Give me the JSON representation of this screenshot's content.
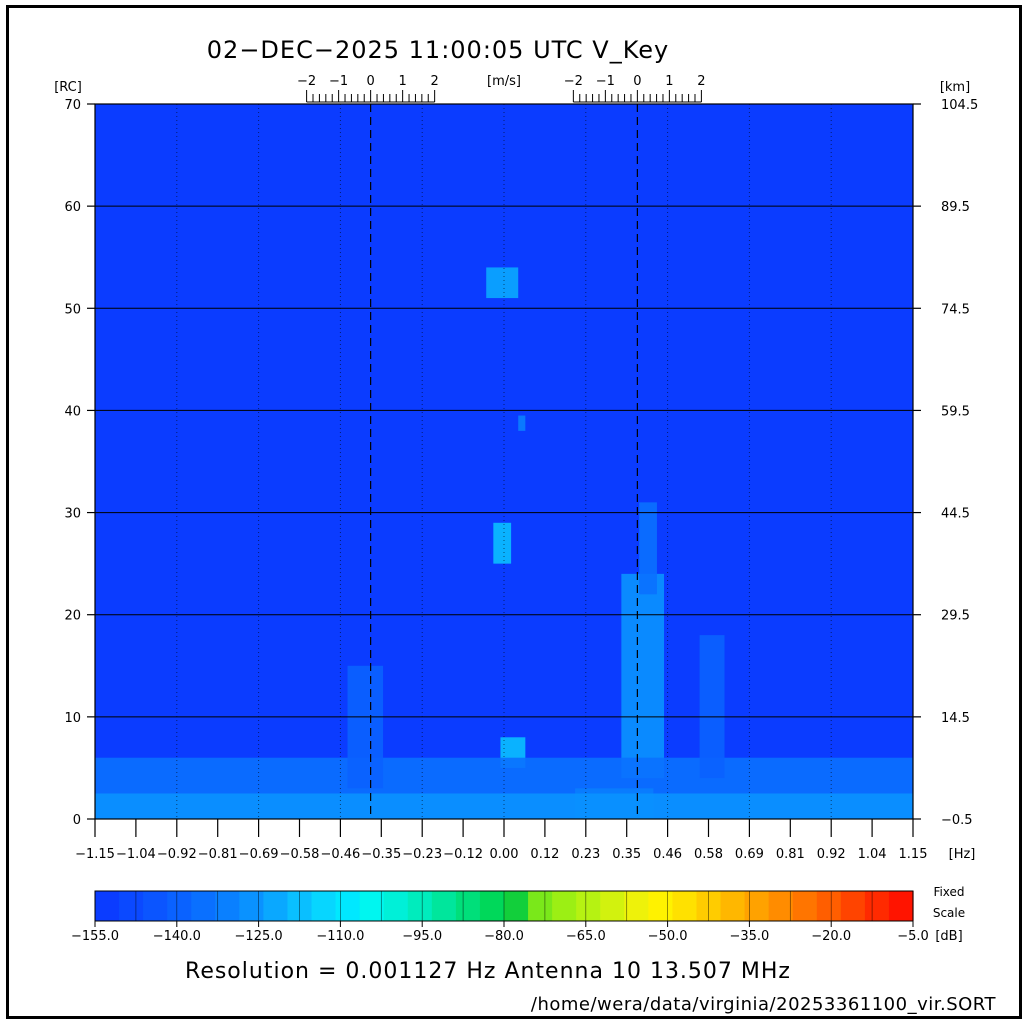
{
  "header": {
    "title": "02−DEC−2025 11:00:05 UTC   V_Key"
  },
  "units": {
    "left": "[RC]",
    "right": "[km]",
    "top": "[m/s]",
    "bottom": "[Hz]",
    "colorbar": "[dB]"
  },
  "colorbar": {
    "label_line1": "Fixed",
    "label_line2": "Scale",
    "ticks": [
      "−155.0",
      "−140.0",
      "−125.0",
      "−110.0",
      "−95.0",
      "−80.0",
      "−65.0",
      "−50.0",
      "−35.0",
      "−20.0",
      "−5.0"
    ],
    "colors": [
      "#0b3cff",
      "#0b49ff",
      "#0b55ff",
      "#0a62ff",
      "#0a70ff",
      "#0a80ff",
      "#0a92ff",
      "#0aa8ff",
      "#0abfff",
      "#07d6ff",
      "#00e8ff",
      "#00f6f0",
      "#00f0d8",
      "#00ecbd",
      "#00e69c",
      "#00df7a",
      "#00d85a",
      "#12cf3b",
      "#7ae81a",
      "#9cef14",
      "#b6f212",
      "#d2f20e",
      "#eef20a",
      "#fff200",
      "#ffe100",
      "#ffcc00",
      "#ffb700",
      "#ffa200",
      "#ff8c00",
      "#ff7500",
      "#ff5e00",
      "#ff4400",
      "#ff2a00",
      "#ff1400"
    ]
  },
  "footer": {
    "resolution": "Resolution = 0.001127 Hz   Antenna 10   13.507 MHz",
    "path": "/home/wera/data/virginia/20253361100_vir.SORT"
  },
  "colors": {
    "background_field": "#0b3cff",
    "low_noise": "#0a6dff",
    "bragg_peak": "#19e6f0",
    "grid": "#000000"
  },
  "chart_data": {
    "type": "heatmap",
    "title": "02−DEC−2025 11:00:05 UTC   V_Key",
    "xlabel": "[Hz]",
    "ylabel_left": "[RC]",
    "ylabel_right": "[km]",
    "x2label": "[m/s]",
    "xlim": [
      -1.15,
      1.15
    ],
    "ylim": [
      0,
      70
    ],
    "x_ticks": [
      "−1.15",
      "−1.04",
      "−0.92",
      "−0.81",
      "−0.69",
      "−0.58",
      "−0.46",
      "−0.35",
      "−0.23",
      "−0.12",
      "0.00",
      "0.12",
      "0.23",
      "0.35",
      "0.46",
      "0.58",
      "0.69",
      "0.81",
      "0.92",
      "1.04",
      "1.15"
    ],
    "x_tick_values": [
      -1.15,
      -1.035,
      -0.92,
      -0.805,
      -0.69,
      -0.575,
      -0.46,
      -0.345,
      -0.23,
      -0.115,
      0,
      0.115,
      0.23,
      0.345,
      0.46,
      0.575,
      0.69,
      0.805,
      0.92,
      1.035,
      1.15
    ],
    "y_ticks_left": [
      "0",
      "10",
      "20",
      "30",
      "40",
      "50",
      "60",
      "70"
    ],
    "y_tick_values": [
      0,
      10,
      20,
      30,
      40,
      50,
      60,
      70
    ],
    "y_ticks_right": [
      "−0.5",
      "14.5",
      "29.5",
      "44.5",
      "59.5",
      "74.5",
      "89.5",
      "104.5"
    ],
    "velocity_ticks": [
      "−2",
      "−1",
      "0",
      "1",
      "2"
    ],
    "velocity_tick_values": [
      -2,
      -1,
      0,
      1,
      2
    ],
    "bragg_lines_hz": [
      -0.375,
      0.375
    ],
    "velocity_hz_per_mps": 0.09,
    "grid": true,
    "colorbar_range_db": [
      -155,
      -5
    ],
    "features": [
      {
        "x": [
          -0.05,
          0.04
        ],
        "y": [
          51,
          54
        ],
        "db": -125
      },
      {
        "x": [
          -0.03,
          0.02
        ],
        "y": [
          25,
          29
        ],
        "db": -120
      },
      {
        "x": [
          0.04,
          0.06
        ],
        "y": [
          38,
          39.5
        ],
        "db": -132
      },
      {
        "x": [
          -0.01,
          0.06
        ],
        "y": [
          5,
          8
        ],
        "db": -120
      },
      {
        "x": [
          0.33,
          0.45
        ],
        "y": [
          4,
          24
        ],
        "db": -128
      },
      {
        "x": [
          0.38,
          0.43
        ],
        "y": [
          22,
          31
        ],
        "db": -135
      },
      {
        "x": [
          0.2,
          0.42
        ],
        "y": [
          0,
          3
        ],
        "db": -105
      },
      {
        "x": [
          -1.15,
          1.15
        ],
        "y": [
          0,
          6
        ],
        "db": -138
      },
      {
        "x": [
          -1.15,
          1.15
        ],
        "y": [
          0,
          2.5
        ],
        "db": -130
      },
      {
        "x": [
          -0.44,
          -0.34
        ],
        "y": [
          3,
          15
        ],
        "db": -140
      },
      {
        "x": [
          0.55,
          0.62
        ],
        "y": [
          4,
          18
        ],
        "db": -142
      }
    ]
  }
}
